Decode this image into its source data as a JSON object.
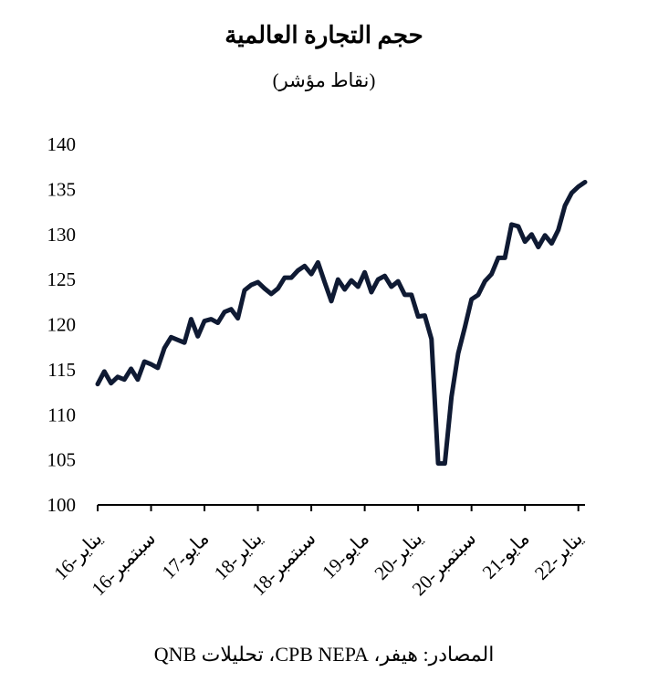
{
  "chart_data": {
    "type": "line",
    "title": "حجم التجارة العالمية",
    "subtitle": "(نقاط مؤشر)",
    "source": "المصادر: هيفر، CPB NEPA، تحليلات QNB",
    "ylim": [
      100,
      140
    ],
    "yticks": [
      100,
      105,
      110,
      115,
      120,
      125,
      130,
      135,
      140
    ],
    "xtick_labels": [
      "يناير-16",
      "سبتمبر-16",
      "مايو-17",
      "يناير-18",
      "سبتمبر-18",
      "مايو-19",
      "يناير-20",
      "سبتمبر-20",
      "مايو-21",
      "يناير-22"
    ],
    "grid": false,
    "line_color": "#0f1a33",
    "series": [
      {
        "name": "",
        "values": [
          113.4,
          114.8,
          113.5,
          114.2,
          113.9,
          115.1,
          113.9,
          115.9,
          115.6,
          115.2,
          117.4,
          118.6,
          118.3,
          118.0,
          120.6,
          118.7,
          120.4,
          120.6,
          120.2,
          121.4,
          121.7,
          120.7,
          123.8,
          124.4,
          124.7,
          124.0,
          123.4,
          124.0,
          125.2,
          125.2,
          126.0,
          126.5,
          125.6,
          126.9,
          124.7,
          122.6,
          125.0,
          123.9,
          124.9,
          124.2,
          125.8,
          123.6,
          125.0,
          125.4,
          124.2,
          124.8,
          123.3,
          123.3,
          120.9,
          121.0,
          118.4,
          104.6,
          104.6,
          112.0,
          116.8,
          119.7,
          122.8,
          123.3,
          124.8,
          125.6,
          127.4,
          127.4,
          131.1,
          130.9,
          129.2,
          130.0,
          128.6,
          129.9,
          129.0,
          130.5,
          133.2,
          134.6,
          135.3,
          135.8
        ]
      }
    ]
  }
}
